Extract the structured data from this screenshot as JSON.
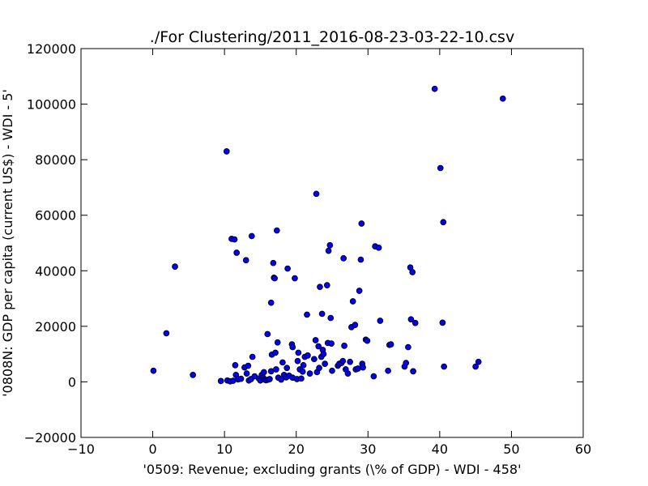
{
  "chart_data": {
    "type": "scatter",
    "title": "./For Clustering/2011_2016-08-23-03-22-10.csv",
    "xlabel": "'0509: Revenue; excluding grants  (\\% of GDP) - WDI - 458'",
    "ylabel": "'0808N: GDP per capita  (current US$) - WDI - 5'",
    "xlim": [
      -10,
      60
    ],
    "ylim": [
      -20000,
      120000
    ],
    "xticks": [
      -10,
      0,
      10,
      20,
      30,
      40,
      50,
      60
    ],
    "yticks": [
      -20000,
      0,
      20000,
      40000,
      60000,
      80000,
      100000,
      120000
    ],
    "xtick_labels": [
      "−10",
      "0",
      "10",
      "20",
      "30",
      "40",
      "50",
      "60"
    ],
    "ytick_labels": [
      "−20000",
      "0",
      "20000",
      "40000",
      "60000",
      "80000",
      "100000",
      "120000"
    ],
    "grid": false,
    "legend": "none",
    "marker_color": "#0000ff",
    "marker_edge": "#000000",
    "points": [
      [
        0.1,
        4000
      ],
      [
        1.9,
        17500
      ],
      [
        3.1,
        41500
      ],
      [
        5.6,
        2500
      ],
      [
        9.5,
        300
      ],
      [
        10.3,
        83000
      ],
      [
        10.4,
        500
      ],
      [
        10.8,
        200
      ],
      [
        11.0,
        51500
      ],
      [
        11.2,
        400
      ],
      [
        11.4,
        51300
      ],
      [
        11.5,
        6000
      ],
      [
        11.6,
        2500
      ],
      [
        11.7,
        46500
      ],
      [
        11.9,
        900
      ],
      [
        12.3,
        1100
      ],
      [
        12.8,
        5200
      ],
      [
        13.0,
        43800
      ],
      [
        13.1,
        3000
      ],
      [
        13.3,
        5800
      ],
      [
        13.4,
        500
      ],
      [
        13.7,
        1000
      ],
      [
        13.8,
        52500
      ],
      [
        13.9,
        9000
      ],
      [
        14.2,
        2000
      ],
      [
        14.8,
        1200
      ],
      [
        15.0,
        500
      ],
      [
        15.2,
        2500
      ],
      [
        15.4,
        1500
      ],
      [
        15.5,
        3500
      ],
      [
        15.6,
        800
      ],
      [
        15.8,
        600
      ],
      [
        16.0,
        17200
      ],
      [
        16.1,
        800
      ],
      [
        16.3,
        1000
      ],
      [
        16.5,
        28500
      ],
      [
        16.5,
        3800
      ],
      [
        16.6,
        9800
      ],
      [
        16.8,
        42800
      ],
      [
        16.9,
        37500
      ],
      [
        17.0,
        37300
      ],
      [
        17.1,
        10500
      ],
      [
        17.2,
        4500
      ],
      [
        17.3,
        54500
      ],
      [
        17.4,
        14200
      ],
      [
        17.5,
        1500
      ],
      [
        17.9,
        800
      ],
      [
        18.1,
        7000
      ],
      [
        18.3,
        2500
      ],
      [
        18.6,
        1600
      ],
      [
        18.7,
        5000
      ],
      [
        18.8,
        40800
      ],
      [
        19.0,
        2200
      ],
      [
        19.4,
        13500
      ],
      [
        19.5,
        12500
      ],
      [
        19.5,
        1500
      ],
      [
        19.8,
        37300
      ],
      [
        20.1,
        1000
      ],
      [
        20.2,
        7500
      ],
      [
        20.3,
        10500
      ],
      [
        20.5,
        4500
      ],
      [
        20.7,
        1200
      ],
      [
        20.9,
        3700
      ],
      [
        21.0,
        6000
      ],
      [
        21.2,
        9000
      ],
      [
        21.5,
        24200
      ],
      [
        21.6,
        9500
      ],
      [
        21.9,
        3000
      ],
      [
        22.5,
        8200
      ],
      [
        22.7,
        15000
      ],
      [
        22.8,
        67700
      ],
      [
        22.9,
        3500
      ],
      [
        23.1,
        12800
      ],
      [
        23.2,
        5000
      ],
      [
        23.3,
        34200
      ],
      [
        23.5,
        9000
      ],
      [
        23.6,
        24500
      ],
      [
        23.7,
        11500
      ],
      [
        23.8,
        10000
      ],
      [
        24.0,
        6500
      ],
      [
        24.3,
        34800
      ],
      [
        24.4,
        14000
      ],
      [
        24.5,
        47200
      ],
      [
        24.7,
        49200
      ],
      [
        24.8,
        23000
      ],
      [
        24.9,
        13800
      ],
      [
        25.0,
        4000
      ],
      [
        25.8,
        5800
      ],
      [
        26.0,
        6500
      ],
      [
        26.3,
        6800
      ],
      [
        26.5,
        7500
      ],
      [
        26.6,
        44500
      ],
      [
        26.7,
        13000
      ],
      [
        26.9,
        4500
      ],
      [
        27.2,
        3000
      ],
      [
        27.5,
        7200
      ],
      [
        27.7,
        19700
      ],
      [
        27.9,
        29000
      ],
      [
        28.2,
        20500
      ],
      [
        28.3,
        4500
      ],
      [
        28.6,
        4800
      ],
      [
        28.8,
        32800
      ],
      [
        29.0,
        44000
      ],
      [
        29.1,
        57000
      ],
      [
        29.2,
        6500
      ],
      [
        29.3,
        5200
      ],
      [
        29.7,
        15200
      ],
      [
        29.9,
        14800
      ],
      [
        30.8,
        2000
      ],
      [
        31.0,
        48800
      ],
      [
        31.5,
        48300
      ],
      [
        31.7,
        22000
      ],
      [
        32.8,
        4000
      ],
      [
        33.0,
        13300
      ],
      [
        33.2,
        13500
      ],
      [
        35.1,
        5500
      ],
      [
        35.3,
        6800
      ],
      [
        35.6,
        12500
      ],
      [
        35.9,
        41200
      ],
      [
        36.0,
        22500
      ],
      [
        36.2,
        39500
      ],
      [
        36.3,
        3800
      ],
      [
        36.6,
        21200
      ],
      [
        39.3,
        105500
      ],
      [
        40.1,
        77000
      ],
      [
        40.4,
        21300
      ],
      [
        40.5,
        57500
      ],
      [
        40.6,
        5500
      ],
      [
        45.0,
        5500
      ],
      [
        45.4,
        7200
      ],
      [
        48.8,
        102000
      ]
    ]
  }
}
